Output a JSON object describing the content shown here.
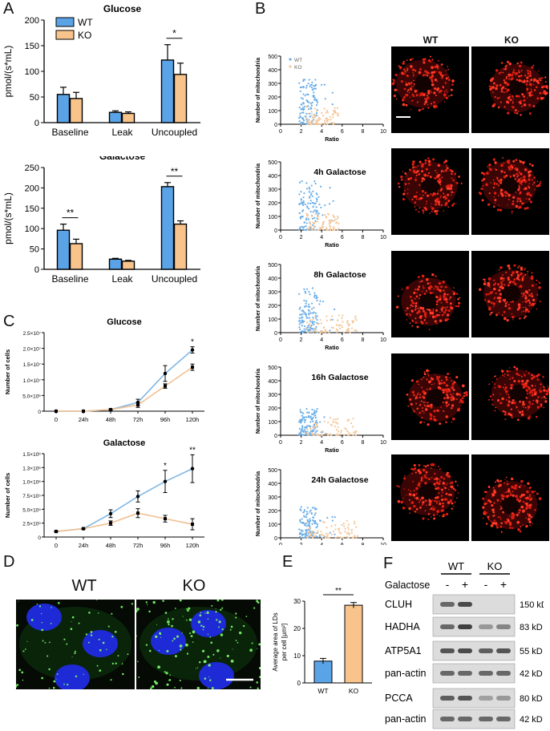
{
  "panels": {
    "A": "A",
    "B": "B",
    "C": "C",
    "D": "D",
    "E": "E",
    "F": "F"
  },
  "colors": {
    "wt": "#5aa3e6",
    "ko": "#f8c48c",
    "wt_scatter": "#6aaee8",
    "ko_scatter": "#f5c79a",
    "line_wt": "#7fb7e6",
    "line_ko": "#f0c090"
  },
  "panel_a": {
    "legend": [
      "WT",
      "KO"
    ],
    "ylabel": "pmol/(s*mL)",
    "categories": [
      "Baseline",
      "Leak",
      "Uncoupled"
    ]
  },
  "panel_b": {
    "legend": [
      "WT",
      "KO"
    ],
    "xlabel": "Ratio",
    "ylabel": "Number of mitochondria",
    "titles": [
      "",
      "4h Galactose",
      "8h Galactose",
      "16h Galactose",
      "24h Galactose"
    ],
    "image_labels": [
      "WT",
      "KO"
    ]
  },
  "panel_c": {
    "ylabel": "Number of cells",
    "categories": [
      "0",
      "24h",
      "48h",
      "72h",
      "96h",
      "120h"
    ]
  },
  "panel_d": {
    "labels": [
      "WT",
      "KO"
    ]
  },
  "panel_e": {
    "ylabel_line1": "Average area of LDs",
    "ylabel_line2": "per cell [µm²]",
    "categories": [
      "WT",
      "KO"
    ],
    "sig": "**"
  },
  "panel_f": {
    "groups": [
      "WT",
      "KO"
    ],
    "galactose_label": "Galactose",
    "signs": [
      "-",
      "+",
      "-",
      "+"
    ],
    "proteins": [
      "CLUH",
      "HADHA",
      "ATP5A1",
      "pan-actin",
      "PCCA",
      "pan-actin"
    ],
    "sizes": [
      "150 kD",
      "83 kD",
      "55 kD",
      "42 kD",
      "80 kD",
      "42 kD"
    ]
  },
  "chart_data": [
    {
      "panel": "A-top",
      "type": "bar",
      "title": "Glucose",
      "categories": [
        "Baseline",
        "Leak",
        "Uncoupled"
      ],
      "series": [
        {
          "name": "WT",
          "values": [
            55,
            20,
            122
          ],
          "errors": [
            14,
            3,
            30
          ]
        },
        {
          "name": "KO",
          "values": [
            47,
            18,
            94
          ],
          "errors": [
            12,
            3,
            22
          ]
        }
      ],
      "ylabel": "pmol/(s*mL)",
      "ylim": [
        0,
        200
      ],
      "yticks": [
        0,
        50,
        100,
        150,
        200
      ],
      "significance": [
        {
          "category": "Uncoupled",
          "label": "*"
        }
      ]
    },
    {
      "panel": "A-bottom",
      "type": "bar",
      "title": "Galactose",
      "categories": [
        "Baseline",
        "Leak",
        "Uncoupled"
      ],
      "series": [
        {
          "name": "WT",
          "values": [
            96,
            25,
            203
          ],
          "errors": [
            15,
            2,
            10
          ]
        },
        {
          "name": "KO",
          "values": [
            63,
            20,
            111
          ],
          "errors": [
            11,
            2,
            8
          ]
        }
      ],
      "ylabel": "pmol/(s*mL)",
      "ylim": [
        0,
        250
      ],
      "yticks": [
        0,
        50,
        100,
        150,
        200,
        250
      ],
      "significance": [
        {
          "category": "Baseline",
          "label": "**"
        },
        {
          "category": "Uncoupled",
          "label": "**"
        }
      ]
    },
    {
      "panel": "C-top",
      "type": "line",
      "title": "Glucose",
      "x": [
        "0",
        "24h",
        "48h",
        "72h",
        "96h",
        "120h"
      ],
      "series": [
        {
          "name": "WT",
          "values": [
            0,
            0,
            500000,
            2800000,
            12000000,
            19500000
          ],
          "errors": [
            0,
            0,
            200000,
            1000000,
            2500000,
            1000000
          ]
        },
        {
          "name": "KO",
          "values": [
            0,
            0,
            500000,
            2000000,
            8000000,
            14000000
          ],
          "errors": [
            0,
            0,
            200000,
            800000,
            700000,
            1000000
          ]
        }
      ],
      "ylabel": "Number of cells",
      "ylim": [
        0,
        25000000
      ],
      "ytick_labels": [
        "0",
        "5.0×10⁶",
        "1.0×10⁷",
        "1.5×10⁷",
        "2.0×10⁷",
        "2.5×10⁷"
      ],
      "significance": [
        {
          "x": "120h",
          "label": "*"
        }
      ]
    },
    {
      "panel": "C-bottom",
      "type": "line",
      "title": "Galactose",
      "x": [
        "0",
        "24h",
        "48h",
        "72h",
        "96h",
        "120h"
      ],
      "series": [
        {
          "name": "WT",
          "values": [
            100000,
            150000,
            420000,
            730000,
            1000000,
            1230000
          ],
          "errors": [
            10000,
            10000,
            70000,
            100000,
            200000,
            250000
          ]
        },
        {
          "name": "KO",
          "values": [
            100000,
            150000,
            250000,
            430000,
            330000,
            230000
          ],
          "errors": [
            10000,
            10000,
            40000,
            80000,
            60000,
            100000
          ]
        }
      ],
      "ylabel": "Number of cells",
      "ylim": [
        0,
        1500000
      ],
      "ytick_labels": [
        "0",
        "2.5×10⁵",
        "5.0×10⁵",
        "7.5×10⁵",
        "1.0×10⁶",
        "1.3×10⁶",
        "1.5×10⁶"
      ],
      "significance": [
        {
          "x": "96h",
          "label": "*"
        },
        {
          "x": "120h",
          "label": "**"
        }
      ]
    },
    {
      "panel": "B",
      "type": "scatter",
      "xlabel": "Ratio",
      "ylabel": "Number of mitochondria",
      "xlim": [
        0,
        10
      ],
      "ylim": [
        0,
        500
      ],
      "xticks": [
        0,
        2,
        4,
        6,
        8,
        10
      ],
      "yticks": [
        0,
        100,
        200,
        300,
        400,
        500
      ],
      "legend": [
        "WT",
        "KO"
      ],
      "note": "Five scatter plots (untitled, 4h, 8h, 16h, 24h Galactose); WT points cluster at ratio 2–3.5 with 0–350 mitochondria, KO points spread at ratio 2.5–6 with 0–150 mitochondria"
    },
    {
      "panel": "E",
      "type": "bar",
      "categories": [
        "WT",
        "KO"
      ],
      "values": [
        8,
        28.5
      ],
      "errors": [
        1,
        1
      ],
      "ylabel": "Average area of LDs per cell [µm²]",
      "ylim": [
        0,
        30
      ],
      "yticks": [
        0,
        10,
        20,
        30
      ],
      "significance": [
        {
          "label": "**"
        }
      ]
    }
  ]
}
